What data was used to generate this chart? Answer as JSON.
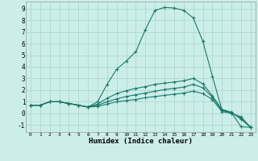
{
  "xlabel": "Humidex (Indice chaleur)",
  "background_color": "#cceee8",
  "grid_color": "#aad4ce",
  "line_color": "#1a7a6a",
  "xlim": [
    -0.5,
    23.5
  ],
  "ylim": [
    -1.6,
    9.6
  ],
  "xticks": [
    0,
    1,
    2,
    3,
    4,
    5,
    6,
    7,
    8,
    9,
    10,
    11,
    12,
    13,
    14,
    15,
    16,
    17,
    18,
    19,
    20,
    21,
    22,
    23
  ],
  "yticks": [
    -1,
    0,
    1,
    2,
    3,
    4,
    5,
    6,
    7,
    8,
    9
  ],
  "curve1_x": [
    0,
    1,
    2,
    3,
    4,
    5,
    6,
    7,
    8,
    9,
    10,
    11,
    12,
    13,
    14,
    15,
    16,
    17,
    18,
    19,
    20,
    21,
    22,
    23
  ],
  "curve1_y": [
    0.7,
    0.7,
    1.0,
    1.0,
    0.85,
    0.7,
    0.55,
    1.0,
    2.5,
    3.8,
    4.5,
    5.3,
    7.2,
    8.85,
    9.1,
    9.05,
    8.85,
    8.2,
    6.2,
    3.2,
    0.3,
    0.05,
    -1.15,
    -1.2
  ],
  "curve2_x": [
    0,
    1,
    2,
    3,
    4,
    5,
    6,
    7,
    8,
    9,
    10,
    11,
    12,
    13,
    14,
    15,
    16,
    17,
    18,
    19,
    20,
    21,
    22,
    23
  ],
  "curve2_y": [
    0.7,
    0.7,
    1.0,
    1.0,
    0.85,
    0.7,
    0.55,
    0.8,
    1.3,
    1.7,
    1.95,
    2.15,
    2.3,
    2.5,
    2.6,
    2.7,
    2.8,
    3.0,
    2.55,
    1.5,
    0.35,
    0.1,
    -0.5,
    -1.2
  ],
  "curve3_x": [
    0,
    1,
    2,
    3,
    4,
    5,
    6,
    7,
    8,
    9,
    10,
    11,
    12,
    13,
    14,
    15,
    16,
    17,
    18,
    19,
    20,
    21,
    22,
    23
  ],
  "curve3_y": [
    0.7,
    0.7,
    1.0,
    1.0,
    0.85,
    0.7,
    0.55,
    0.7,
    1.0,
    1.25,
    1.45,
    1.6,
    1.75,
    1.9,
    2.05,
    2.15,
    2.25,
    2.5,
    2.2,
    1.4,
    0.25,
    0.05,
    -0.4,
    -1.2
  ],
  "curve4_x": [
    0,
    1,
    2,
    3,
    4,
    5,
    6,
    7,
    8,
    9,
    10,
    11,
    12,
    13,
    14,
    15,
    16,
    17,
    18,
    19,
    20,
    21,
    22,
    23
  ],
  "curve4_y": [
    0.7,
    0.7,
    1.0,
    1.0,
    0.85,
    0.7,
    0.55,
    0.6,
    0.8,
    1.0,
    1.1,
    1.2,
    1.35,
    1.45,
    1.55,
    1.65,
    1.75,
    1.9,
    1.7,
    1.2,
    0.15,
    0.0,
    -0.3,
    -1.2
  ]
}
